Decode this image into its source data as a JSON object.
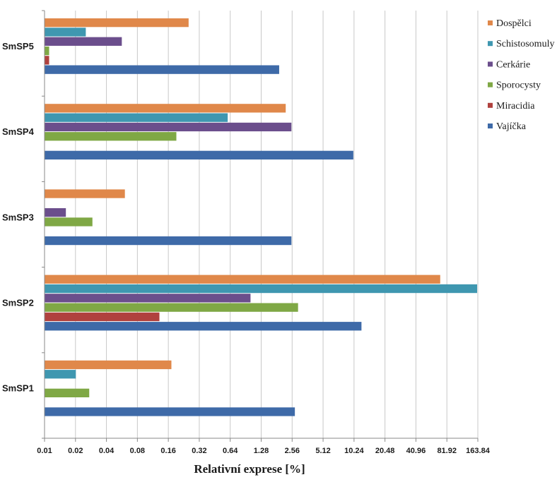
{
  "chart_data": {
    "type": "bar",
    "orientation": "horizontal",
    "x_scale": "log2",
    "xlabel": "Relativní exprese [%]",
    "xlim": [
      0.01,
      163.84
    ],
    "x_ticks": [
      "0.01",
      "0.02",
      "0.04",
      "0.08",
      "0.16",
      "0.32",
      "0.64",
      "1.28",
      "2.56",
      "5.12",
      "10.24",
      "20.48",
      "40.96",
      "81.92",
      "163.84"
    ],
    "categories": [
      "SmSP5",
      "SmSP4",
      "SmSP3",
      "SmSP2",
      "SmSP1"
    ],
    "grid": "vertical",
    "legend_position": "right",
    "series": [
      {
        "name": "Dospělci",
        "color": "#E0884A",
        "values": [
          0.25,
          2.2,
          0.06,
          70,
          0.17
        ]
      },
      {
        "name": "Schistosomuly",
        "color": "#3F97B0",
        "values": [
          0.025,
          0.6,
          null,
          160,
          0.02
        ]
      },
      {
        "name": "Cerkárie",
        "color": "#6B4E8C",
        "values": [
          0.056,
          2.5,
          0.016,
          1.0,
          null
        ]
      },
      {
        "name": "Sporocysty",
        "color": "#7FA845",
        "values": [
          0.011,
          0.19,
          0.029,
          2.9,
          0.027
        ]
      },
      {
        "name": "Miracidia",
        "color": "#B0413E",
        "values": [
          0.011,
          null,
          null,
          0.13,
          null
        ]
      },
      {
        "name": "Vajíčka",
        "color": "#3E6AA8",
        "values": [
          1.9,
          10.0,
          2.5,
          12.0,
          2.7
        ]
      }
    ]
  }
}
